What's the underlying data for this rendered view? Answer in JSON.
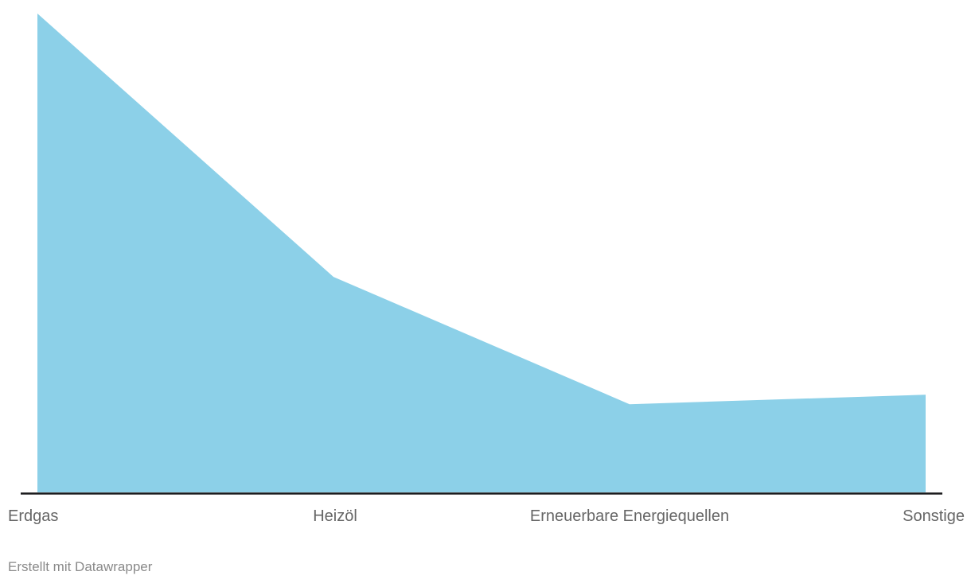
{
  "chart": {
    "footer_credit": "Erstellt mit Datawrapper",
    "area_color": "#8CD0E8",
    "axis_color": "#1a1a1c",
    "label_color": "#666666",
    "footer_color": "#8a8a8a"
  },
  "chart_data": {
    "type": "area",
    "categories": [
      "Erdgas",
      "Heizöl",
      "Erneuerbare Energiequellen",
      "Sonstige"
    ],
    "values": [
      100,
      45,
      18.4,
      20.4
    ],
    "title": "",
    "xlabel": "",
    "ylabel": "",
    "ylim": [
      0,
      100
    ],
    "grid": false,
    "legend": false
  }
}
